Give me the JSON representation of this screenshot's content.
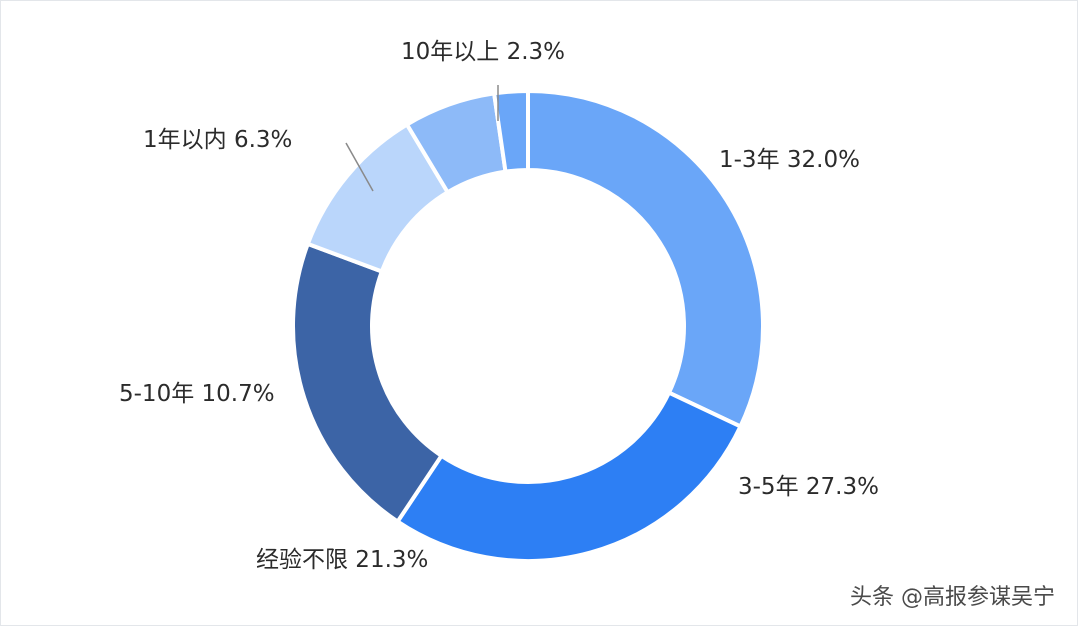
{
  "chart_data": {
    "type": "pie",
    "variant": "donut",
    "title": "",
    "slices": [
      {
        "category": "1-3年",
        "value": 32.0,
        "label": "1-3年  32.0%",
        "color": "#6aa6f8"
      },
      {
        "category": "3-5年",
        "value": 27.3,
        "label": "3-5年  27.3%",
        "color": "#2d7ff4"
      },
      {
        "category": "经验不限",
        "value": 21.3,
        "label": "经验不限  21.3%",
        "color": "#3c64a6"
      },
      {
        "category": "5-10年",
        "value": 10.7,
        "label": "5-10年  10.7%",
        "color": "#bad6fb"
      },
      {
        "category": "1年以内",
        "value": 6.3,
        "label": "1年以内  6.3%",
        "color": "#8dbaf8"
      },
      {
        "category": "10年以上",
        "value": 2.3,
        "label": "10年以上  2.3%",
        "color": "#6aa6f8"
      }
    ]
  },
  "watermark": "头条 @高报参谋吴宁"
}
